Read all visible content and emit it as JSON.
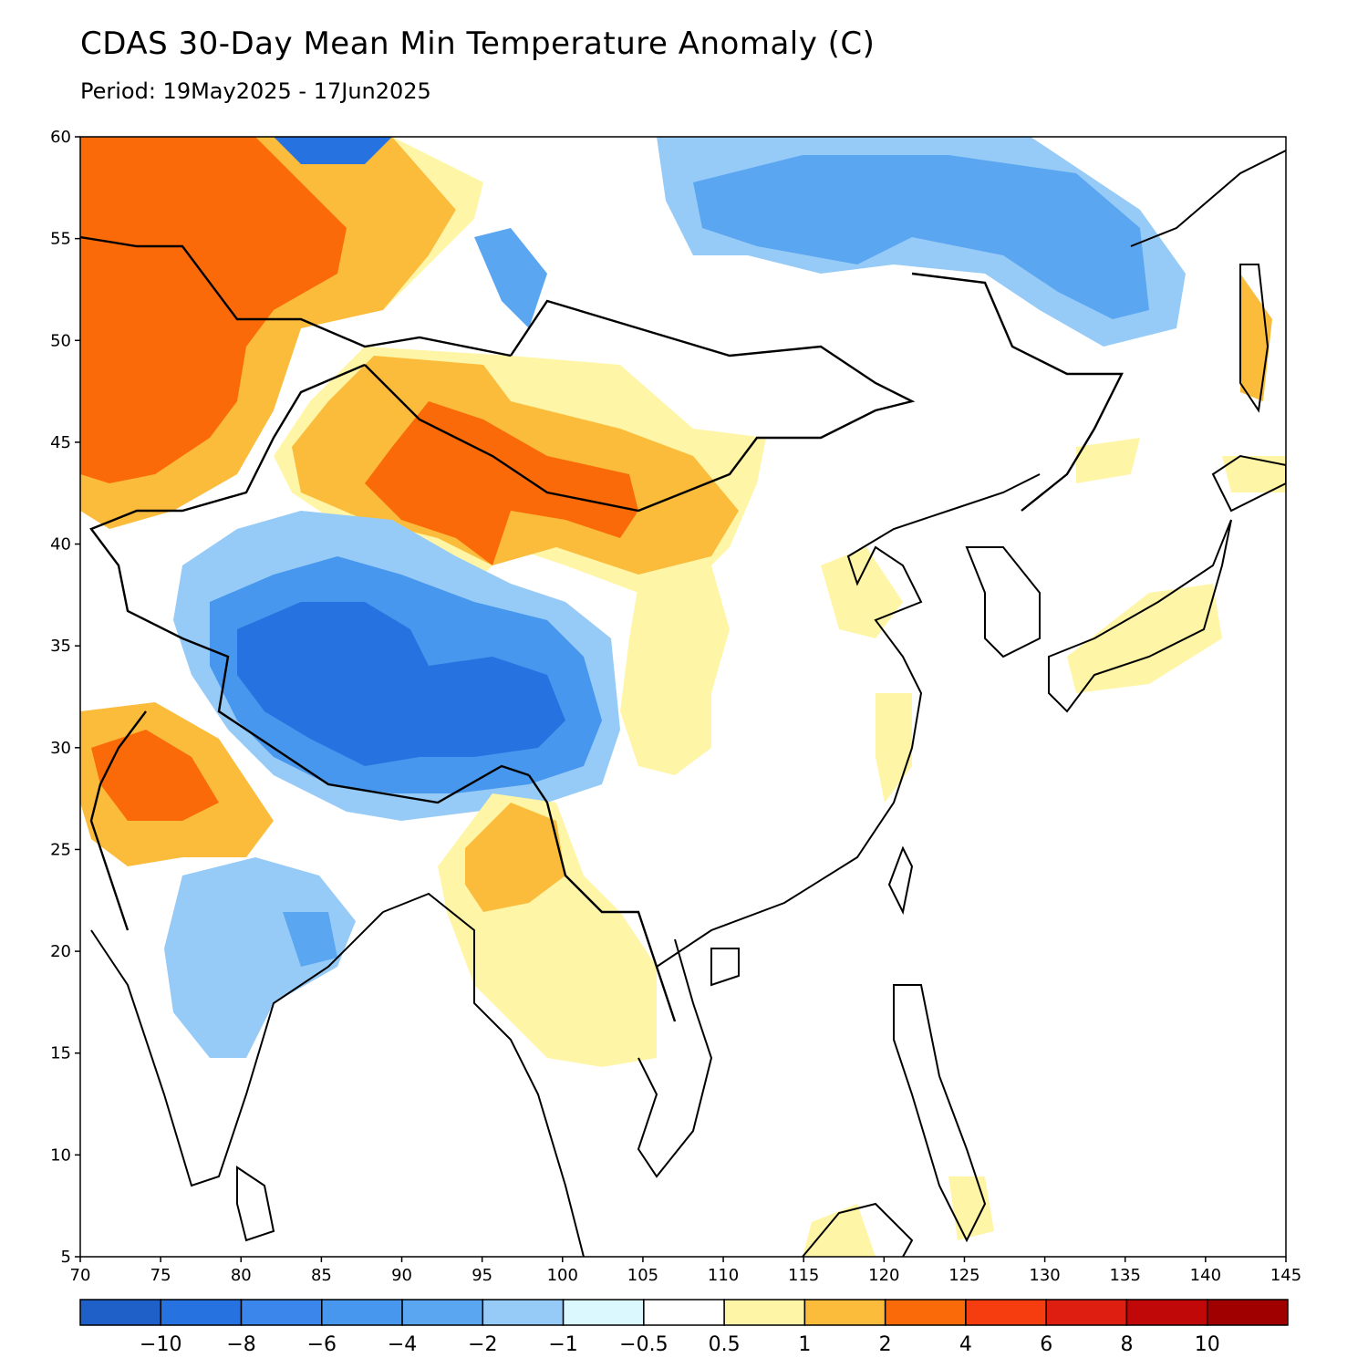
{
  "title": "CDAS 30-Day Mean Min Temperature Anomaly (C)",
  "subtitle": "Period: 19May2025 - 17Jun2025",
  "map": {
    "lon_range": [
      70,
      145
    ],
    "lat_range": [
      5,
      60
    ],
    "x_ticks": [
      "70",
      "75",
      "80",
      "85",
      "90",
      "95",
      "100",
      "105",
      "110",
      "115",
      "120",
      "125",
      "130",
      "135",
      "140",
      "145"
    ],
    "y_ticks": [
      "5",
      "10",
      "15",
      "20",
      "25",
      "30",
      "35",
      "40",
      "45",
      "50",
      "55",
      "60"
    ]
  },
  "colorbar": {
    "colors": [
      "#1e5fc8",
      "#2672e0",
      "#3a86ea",
      "#4797ee",
      "#5aa6f0",
      "#96cbf7",
      "#dcf8ff",
      "#ffffff",
      "#fff5a6",
      "#fbbc3c",
      "#fb6a08",
      "#f53d10",
      "#de1e10",
      "#c00808",
      "#a00000"
    ],
    "labels": [
      "−10",
      "−8",
      "−6",
      "−4",
      "−2",
      "−1",
      "−0.5",
      "0.5",
      "1",
      "2",
      "4",
      "6",
      "8",
      "10"
    ]
  }
}
